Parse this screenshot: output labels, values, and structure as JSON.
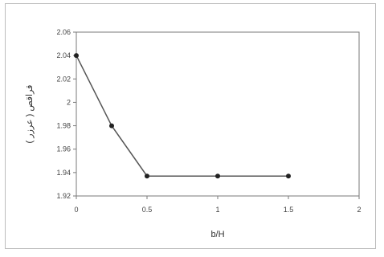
{
  "chart_data": {
    "type": "line",
    "title": "",
    "xlabel": "b/H",
    "ylabel": "قراقص ( عرزر )",
    "xlim": [
      0,
      2
    ],
    "ylim": [
      1.92,
      2.06
    ],
    "xticks": [
      "0",
      "0.5",
      "1",
      "1.5",
      "2"
    ],
    "yticks": [
      "1.92",
      "1.94",
      "1.96",
      "1.98",
      "2",
      "2.02",
      "2.04",
      "2.06"
    ],
    "grid": false,
    "legend": "none",
    "colors": {
      "line": "#555555",
      "marker": "#222222"
    },
    "series": [
      {
        "x": [
          0,
          0.25,
          0.5,
          1,
          1.5
        ],
        "y": [
          2.04,
          1.98,
          1.937,
          1.937,
          1.937
        ]
      }
    ]
  }
}
